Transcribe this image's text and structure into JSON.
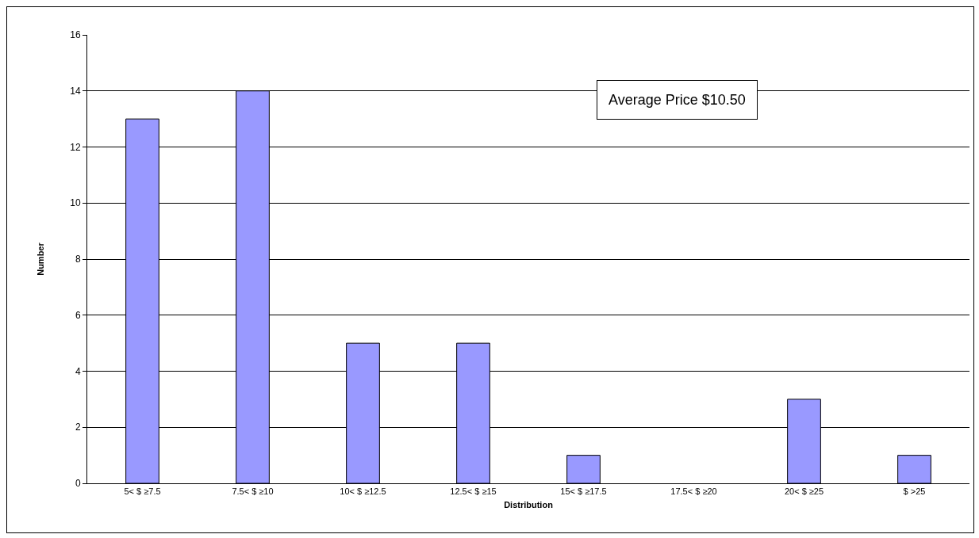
{
  "chart_data": {
    "type": "bar",
    "xlabel": "Distribution",
    "ylabel": "Number",
    "categories": [
      "5< $ ≥7.5",
      "7.5< $ ≥10",
      "10< $ ≥12.5",
      "12.5< $ ≥15",
      "15< $ ≥17.5",
      "17.5< $ ≥20",
      "20< $ ≥25",
      "$ >25"
    ],
    "values": [
      13,
      14,
      5,
      5,
      1,
      0,
      3,
      1
    ],
    "color": "#9999ff",
    "ylim": [
      0,
      16
    ],
    "yticks": [
      0,
      2,
      4,
      6,
      8,
      10,
      12,
      14,
      16
    ],
    "grid": "y",
    "annotations": [
      "Average Price $10.50"
    ]
  }
}
